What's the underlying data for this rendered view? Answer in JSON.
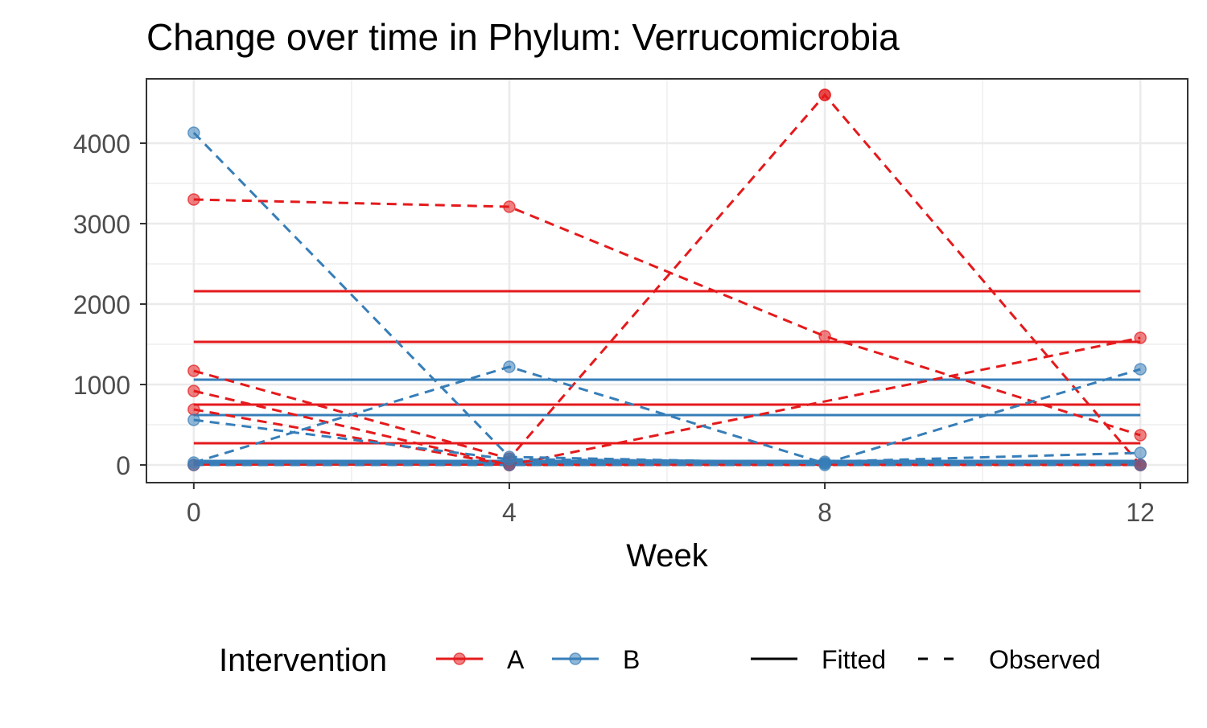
{
  "chart_data": {
    "type": "line",
    "title": "Change over time in Phylum: Verrucomicrobia",
    "xlabel": "Week",
    "ylabel": "",
    "x_ticks": [
      0,
      4,
      8,
      12
    ],
    "y_ticks": [
      0,
      1000,
      2000,
      3000,
      4000
    ],
    "xlim": [
      -0.6,
      12.6
    ],
    "ylim": [
      -220,
      4800
    ],
    "grid": true,
    "legend_position": "bottom",
    "legend": {
      "group_title": "Intervention",
      "groups": [
        {
          "name": "A",
          "color": "#E41A1C"
        },
        {
          "name": "B",
          "color": "#377EB8"
        }
      ],
      "linetypes": [
        {
          "name": "Fitted",
          "dash": "solid"
        },
        {
          "name": "Observed",
          "dash": "dashed"
        }
      ]
    },
    "observed": [
      {
        "group": "A",
        "x": [
          0,
          4,
          8,
          12
        ],
        "y": [
          3300,
          3210,
          1600,
          370
        ]
      },
      {
        "group": "A",
        "x": [
          0,
          4,
          8,
          12
        ],
        "y": [
          1170,
          80,
          4600,
          0
        ]
      },
      {
        "group": "A",
        "x": [
          0,
          4,
          12
        ],
        "y": [
          920,
          0,
          1580
        ]
      },
      {
        "group": "A",
        "x": [
          0,
          4,
          12
        ],
        "y": [
          690,
          0,
          0
        ]
      },
      {
        "group": "A",
        "x": [
          0,
          4,
          12
        ],
        "y": [
          0,
          0,
          0
        ]
      },
      {
        "group": "B",
        "x": [
          0,
          4,
          8
        ],
        "y": [
          4130,
          100,
          20
        ]
      },
      {
        "group": "B",
        "x": [
          0,
          4,
          8,
          12
        ],
        "y": [
          30,
          1220,
          20,
          1190
        ]
      },
      {
        "group": "B",
        "x": [
          0,
          4,
          8,
          12
        ],
        "y": [
          560,
          70,
          40,
          150
        ]
      },
      {
        "group": "B",
        "x": [
          0,
          4,
          8,
          12
        ],
        "y": [
          0,
          0,
          0,
          0
        ]
      }
    ],
    "observed_points_only": [
      {
        "group": "A",
        "x": 8,
        "y": 4600
      }
    ],
    "fitted": [
      {
        "group": "A",
        "y": 2160
      },
      {
        "group": "A",
        "y": 1530
      },
      {
        "group": "A",
        "y": 750
      },
      {
        "group": "A",
        "y": 270
      },
      {
        "group": "A",
        "y": 20
      },
      {
        "group": "A",
        "y": 5
      },
      {
        "group": "B",
        "y": 1060
      },
      {
        "group": "B",
        "y": 620
      },
      {
        "group": "B",
        "y": 50
      },
      {
        "group": "B",
        "y": 30
      }
    ],
    "fitted_x_range": [
      0,
      12
    ]
  }
}
